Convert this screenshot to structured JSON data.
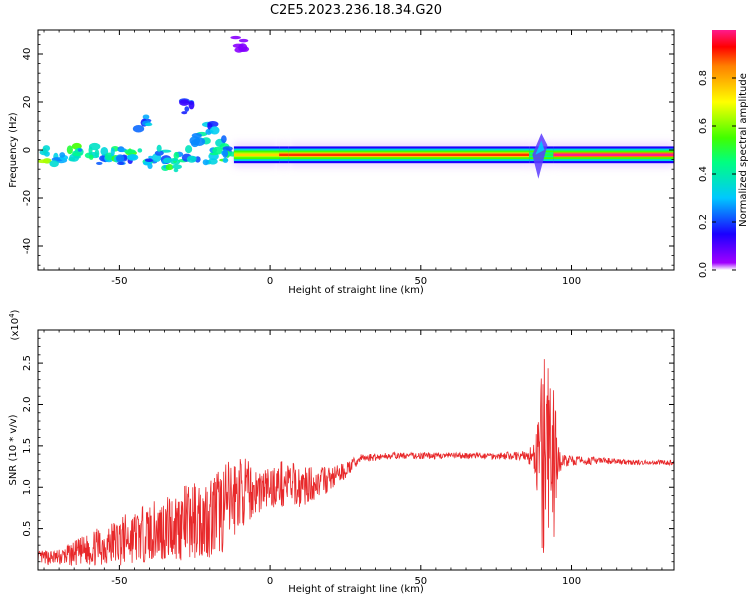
{
  "title": "C2E5.2023.236.18.34.G20",
  "chart_data": [
    {
      "type": "heatmap",
      "xlabel": "Height of straight line (km)",
      "ylabel": "Frequency (Hz)",
      "xlim": [
        -77,
        134
      ],
      "ylim": [
        -50,
        50
      ],
      "x_ticks": [
        "-50",
        "0",
        "50",
        "100"
      ],
      "x_tick_values": [
        -50,
        0,
        50,
        100
      ],
      "y_ticks": [
        "40",
        "20",
        "0",
        "-20",
        "-40"
      ],
      "y_tick_values": [
        40,
        20,
        0,
        -20,
        -40
      ],
      "colorbar": {
        "label": "Normalized spectral amplitude",
        "range": [
          0,
          1
        ],
        "ticks": [
          "0.0",
          "0.2",
          "0.4",
          "0.6",
          "0.8"
        ],
        "tick_values": [
          0.0,
          0.2,
          0.4,
          0.6,
          0.8
        ]
      },
      "main_band": {
        "freq_center": -2,
        "segments": [
          {
            "x_start": -12,
            "x_end": 3,
            "amplitude": 0.75
          },
          {
            "x_start": 3,
            "x_end": 6,
            "amplitude": 0.9
          },
          {
            "x_start": 6,
            "x_end": 86,
            "amplitude": 0.9
          },
          {
            "x_start": 86,
            "x_end": 94,
            "amplitude": 0.5
          },
          {
            "x_start": 94,
            "x_end": 134,
            "amplitude": 1.0
          }
        ]
      },
      "blobs": [
        {
          "x": -74,
          "f": -2,
          "a": 0.55
        },
        {
          "x": -70,
          "f": -3,
          "a": 0.45
        },
        {
          "x": -66,
          "f": -1,
          "a": 0.5
        },
        {
          "x": -62,
          "f": -2,
          "a": 0.4
        },
        {
          "x": -58,
          "f": 0,
          "a": 0.5
        },
        {
          "x": -55,
          "f": -3,
          "a": 0.35
        },
        {
          "x": -51,
          "f": -1,
          "a": 0.45
        },
        {
          "x": -48,
          "f": -5,
          "a": 0.3
        },
        {
          "x": -45,
          "f": -2,
          "a": 0.5
        },
        {
          "x": -42,
          "f": 11,
          "a": 0.3
        },
        {
          "x": -40,
          "f": -4,
          "a": 0.35
        },
        {
          "x": -36,
          "f": -2,
          "a": 0.4
        },
        {
          "x": -33,
          "f": -6,
          "a": 0.5
        },
        {
          "x": -30,
          "f": -4,
          "a": 0.45
        },
        {
          "x": -28,
          "f": 18,
          "a": 0.2
        },
        {
          "x": -26,
          "f": -1,
          "a": 0.4
        },
        {
          "x": -23,
          "f": 5,
          "a": 0.35
        },
        {
          "x": -20,
          "f": -3,
          "a": 0.45
        },
        {
          "x": -19,
          "f": 10,
          "a": 0.3
        },
        {
          "x": -16,
          "f": 2,
          "a": 0.4
        },
        {
          "x": -14,
          "f": -2,
          "a": 0.5
        },
        {
          "x": -10,
          "f": 44,
          "a": 0.05
        }
      ],
      "disturbance": {
        "x": 90,
        "f_min": -12,
        "f_max": 7
      }
    },
    {
      "type": "line",
      "xlabel": "Height of straight line (km)",
      "ylabel": "SNR (10 * v/v)",
      "y_multiplier": "(x10",
      "y_multiplier_exp": "4",
      "y_multiplier_close": ")",
      "xlim": [
        -77,
        134
      ],
      "ylim": [
        0,
        2.9
      ],
      "x_ticks": [
        "-50",
        "0",
        "50",
        "100"
      ],
      "x_tick_values": [
        -50,
        0,
        50,
        100
      ],
      "y_ticks": [
        "0.5",
        "1.0",
        "1.5",
        "2.0",
        "2.5"
      ],
      "y_tick_values": [
        0.5,
        1.0,
        1.5,
        2.0,
        2.5
      ],
      "color": "#e8282a",
      "series": [
        {
          "x": [
            -77,
            -70,
            -60,
            -50,
            -40,
            -30,
            -20,
            -15,
            -10,
            -5,
            0,
            5,
            10,
            15,
            20,
            25,
            30,
            40,
            50,
            60,
            70,
            80,
            85,
            88,
            90,
            91,
            92,
            93,
            94,
            95,
            96,
            98,
            100,
            110,
            120,
            134
          ],
          "y": [
            0.15,
            0.15,
            0.25,
            0.35,
            0.45,
            0.55,
            0.65,
            0.75,
            0.95,
            0.95,
            1.0,
            1.05,
            1.0,
            1.05,
            1.1,
            1.2,
            1.35,
            1.38,
            1.38,
            1.38,
            1.38,
            1.38,
            1.38,
            1.35,
            1.3,
            1.3,
            1.3,
            1.3,
            1.3,
            1.35,
            1.3,
            1.32,
            1.32,
            1.32,
            1.3,
            1.3
          ],
          "noise": [
            0.08,
            0.1,
            0.2,
            0.3,
            0.35,
            0.45,
            0.5,
            0.55,
            0.45,
            0.3,
            0.25,
            0.3,
            0.25,
            0.2,
            0.15,
            0.1,
            0.05,
            0.04,
            0.04,
            0.04,
            0.04,
            0.05,
            0.06,
            0.2,
            1.1,
            1.3,
            1.2,
            1.4,
            1.3,
            0.4,
            0.15,
            0.08,
            0.06,
            0.04,
            0.03,
            0.03
          ]
        }
      ]
    }
  ]
}
